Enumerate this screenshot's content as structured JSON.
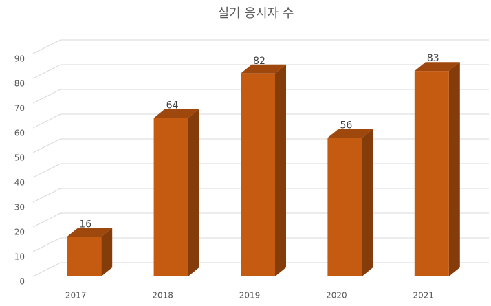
{
  "chart_data": {
    "type": "bar3d",
    "title": "실기 응시자 수",
    "categories": [
      "2017",
      "2018",
      "2019",
      "2020",
      "2021"
    ],
    "values": [
      16,
      64,
      82,
      56,
      83
    ],
    "color": "#c55a11",
    "ylim": [
      0,
      90
    ],
    "yticks": [
      0,
      10,
      20,
      30,
      40,
      50,
      60,
      70,
      80,
      90
    ],
    "grid": true
  }
}
